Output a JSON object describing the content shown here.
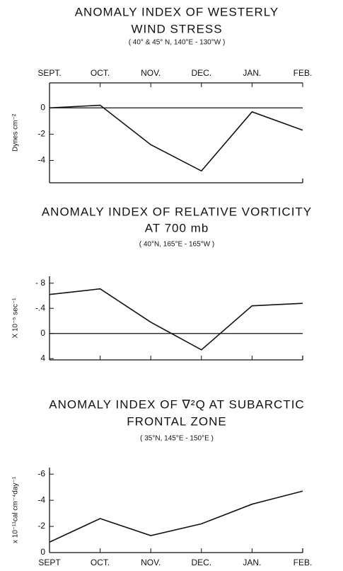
{
  "chart_data": [
    {
      "type": "line",
      "title": [
        "ANOMALY INDEX OF WESTERLY",
        "WIND STRESS"
      ],
      "subtitle": "( 40° & 45° N, 140°E - 130°W )",
      "y_label": "Dynes cm⁻²",
      "categories": [
        "SEPT.",
        "OCT.",
        "NOV.",
        "DEC.",
        "JAN.",
        "FEB."
      ],
      "x_labels": "top",
      "values": [
        0,
        0.2,
        -2.8,
        -4.8,
        -0.3,
        -1.7
      ],
      "color": "#111111",
      "ylim": [
        -5.7,
        1.9
      ],
      "yticks": [
        0,
        -2,
        -4
      ],
      "zero_line": true
    },
    {
      "type": "line",
      "title": [
        "ANOMALY INDEX OF RELATIVE VORTICITY",
        "AT 700 mb"
      ],
      "subtitle": "( 40°N, 165°E - 165°W )",
      "y_label": "X 10⁻⁵ sec⁻¹",
      "categories": [
        null,
        null,
        null,
        null,
        null,
        null
      ],
      "x_labels": "none",
      "values": [
        -0.62,
        -0.71,
        -0.18,
        0.26,
        -0.44,
        -0.48
      ],
      "color": "#111111",
      "ylim": [
        0.42,
        -0.91
      ],
      "yticks": [
        {
          "value": -0.8,
          "label": "- 8"
        },
        {
          "value": -0.4,
          "label": "-.4"
        },
        0,
        {
          "value": 0.4,
          "label": "4"
        }
      ],
      "zero_line": true
    },
    {
      "type": "line",
      "title": [
        "ANOMALY INDEX OF ∇²Q AT SUBARCTIC",
        "FRONTAL ZONE"
      ],
      "subtitle": "( 35°N, 145°E - 150°E )",
      "y_label": "x 10⁻¹¹cal cm⁻⁴day⁻¹",
      "categories": [
        "SEPT",
        "OCT.",
        "NOV.",
        "DEC.",
        "JAN.",
        "FEB."
      ],
      "x_labels": "bottom",
      "values": [
        -0.8,
        -2.6,
        -1.3,
        -2.2,
        -3.7,
        -4.7
      ],
      "color": "#111111",
      "ylim": [
        0,
        -6.5
      ],
      "yticks": [
        -6,
        -4,
        -2,
        0
      ],
      "zero_line": false
    }
  ]
}
